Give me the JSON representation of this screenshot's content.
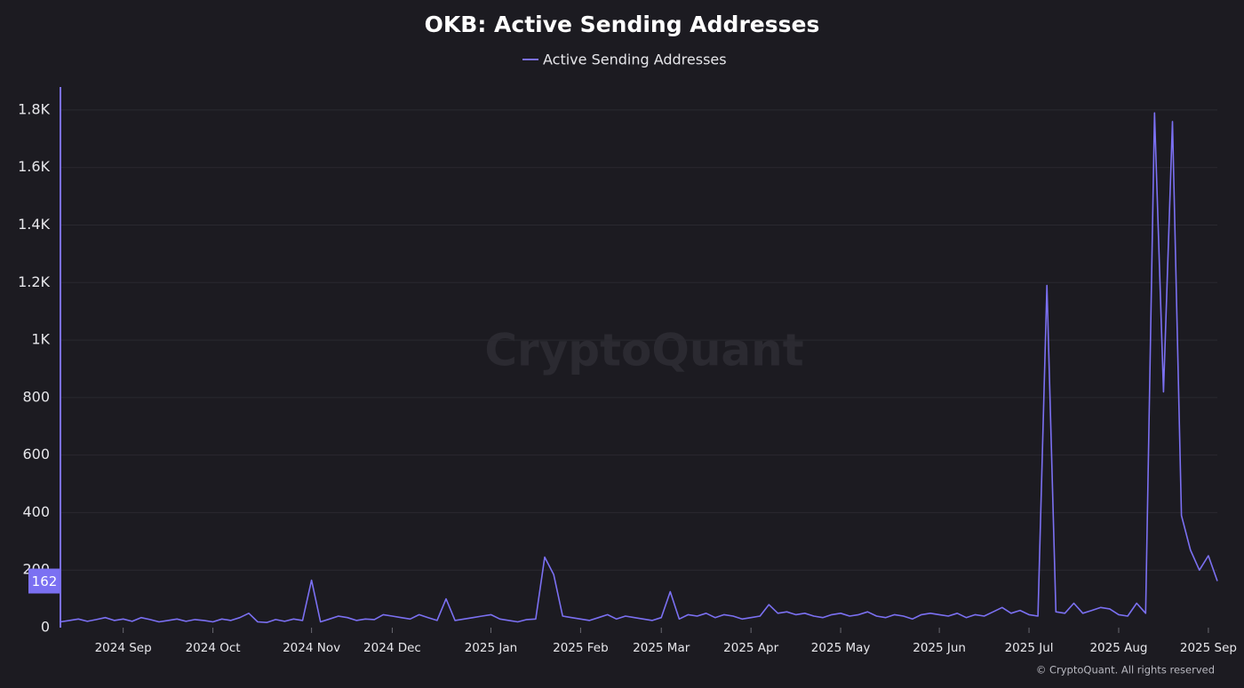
{
  "chart_data": {
    "type": "line",
    "title": "OKB: Active Sending Addresses",
    "watermark": "CryptoQuant",
    "footer": "© CryptoQuant. All rights reserved",
    "categories": [
      null,
      null,
      null,
      null,
      null,
      null,
      null,
      "2024 Sep",
      null,
      null,
      null,
      null,
      null,
      null,
      null,
      null,
      null,
      "2024 Oct",
      null,
      null,
      null,
      null,
      null,
      null,
      null,
      null,
      null,
      null,
      "2024 Nov",
      null,
      null,
      null,
      null,
      null,
      null,
      null,
      null,
      "2024 Dec",
      null,
      null,
      null,
      null,
      null,
      null,
      null,
      null,
      null,
      null,
      "2025 Jan",
      null,
      null,
      null,
      null,
      null,
      null,
      null,
      null,
      null,
      "2025 Feb",
      null,
      null,
      null,
      null,
      null,
      null,
      null,
      null,
      "2025 Mar",
      null,
      null,
      null,
      null,
      null,
      null,
      null,
      null,
      null,
      "2025 Apr",
      null,
      null,
      null,
      null,
      null,
      null,
      null,
      null,
      null,
      "2025 May",
      null,
      null,
      null,
      null,
      null,
      null,
      null,
      null,
      null,
      null,
      "2025 Jun",
      null,
      null,
      null,
      null,
      null,
      null,
      null,
      null,
      null,
      "2025 Jul",
      null,
      null,
      null,
      null,
      null,
      null,
      null,
      null,
      null,
      "2025 Aug",
      null,
      null,
      null,
      null,
      null,
      null,
      null,
      null,
      null,
      "2025 Sep",
      null
    ],
    "series": [
      {
        "name": "Active Sending Addresses",
        "color": "#7b70f2",
        "values": [
          20,
          25,
          30,
          22,
          28,
          35,
          25,
          30,
          22,
          35,
          28,
          20,
          25,
          30,
          22,
          28,
          25,
          20,
          30,
          25,
          35,
          50,
          20,
          18,
          28,
          22,
          30,
          25,
          165,
          20,
          30,
          40,
          35,
          25,
          30,
          28,
          45,
          40,
          35,
          30,
          45,
          35,
          25,
          100,
          25,
          30,
          35,
          40,
          45,
          30,
          25,
          20,
          28,
          30,
          245,
          185,
          40,
          35,
          30,
          25,
          35,
          45,
          30,
          40,
          35,
          30,
          25,
          35,
          125,
          30,
          45,
          40,
          50,
          35,
          45,
          40,
          30,
          35,
          40,
          80,
          50,
          55,
          45,
          50,
          40,
          35,
          45,
          50,
          40,
          45,
          55,
          40,
          35,
          45,
          40,
          30,
          45,
          50,
          45,
          40,
          50,
          35,
          45,
          40,
          55,
          70,
          50,
          60,
          45,
          40,
          1190,
          55,
          50,
          85,
          50,
          60,
          70,
          65,
          45,
          40,
          85,
          50,
          1790,
          820,
          1760,
          390,
          270,
          200,
          250,
          162
        ]
      }
    ],
    "ylim": [
      0,
      1880
    ],
    "yticks": [
      0,
      200,
      400,
      600,
      800,
      {
        "value": 1000,
        "label": "1K"
      },
      {
        "value": 1200,
        "label": "1.2K"
      },
      {
        "value": 1400,
        "label": "1.4K"
      },
      {
        "value": 1600,
        "label": "1.6K"
      },
      {
        "value": 1800,
        "label": "1.8K"
      }
    ],
    "grid": true
  }
}
